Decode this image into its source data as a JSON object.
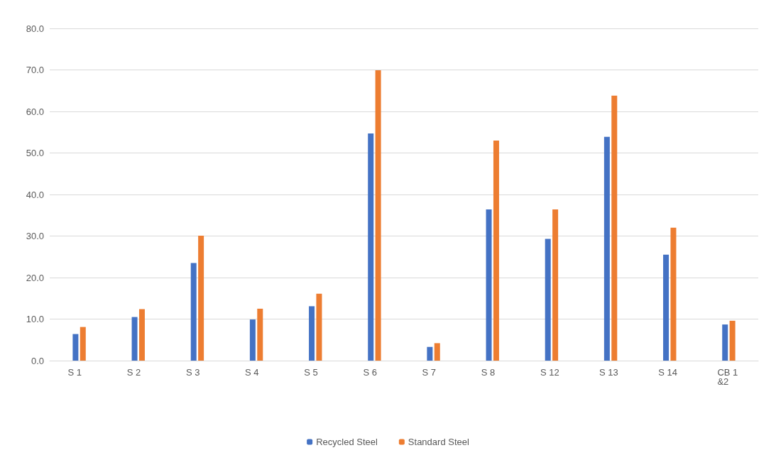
{
  "chart_data": {
    "type": "bar",
    "categories": [
      "S 1",
      "S 2",
      "S 3",
      "S 4",
      "S 5",
      "S 6",
      "S 7",
      "S 8",
      "S 12",
      "S 13",
      "S 14",
      "CB 1&2"
    ],
    "series": [
      {
        "name": "Recycled Steel",
        "color": "#4472c4",
        "values": [
          6.4,
          10.5,
          23.5,
          9.9,
          13.1,
          54.7,
          3.3,
          36.4,
          29.3,
          53.9,
          25.5,
          8.7
        ]
      },
      {
        "name": "Standard Steel",
        "color": "#ed7d31",
        "values": [
          8.1,
          12.4,
          30.1,
          12.5,
          16.1,
          69.9,
          4.2,
          53.0,
          36.4,
          63.8,
          32.0,
          9.6
        ]
      }
    ],
    "ylim": [
      0,
      80
    ],
    "yticks": [
      {
        "value": 0,
        "label": "0.0"
      },
      {
        "value": 10,
        "label": "10.0"
      },
      {
        "value": 20,
        "label": "20.0"
      },
      {
        "value": 30,
        "label": "30.0"
      },
      {
        "value": 40,
        "label": "40.0"
      },
      {
        "value": 50,
        "label": "50.0"
      },
      {
        "value": 60,
        "label": "60.0"
      },
      {
        "value": 70,
        "label": "70.0"
      },
      {
        "value": 80,
        "label": "80.0"
      }
    ],
    "grid": "y",
    "legend": "bottom"
  }
}
